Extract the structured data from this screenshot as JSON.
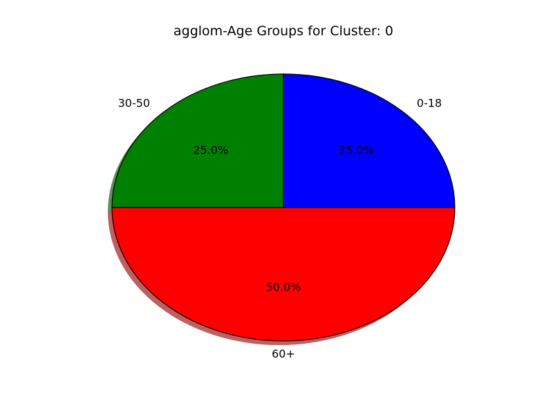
{
  "chart_data": {
    "type": "pie",
    "title": "agglom-Age Groups for Cluster: 0",
    "shadow": true,
    "slices": [
      {
        "label": "0-18",
        "value": 25.0,
        "pct_label": "25.0%",
        "color": "#0000ff"
      },
      {
        "label": "30-50",
        "value": 25.0,
        "pct_label": "25.0%",
        "color": "#008000"
      },
      {
        "label": "60+",
        "value": 50.0,
        "pct_label": "50.0%",
        "color": "#ff0000"
      }
    ]
  }
}
